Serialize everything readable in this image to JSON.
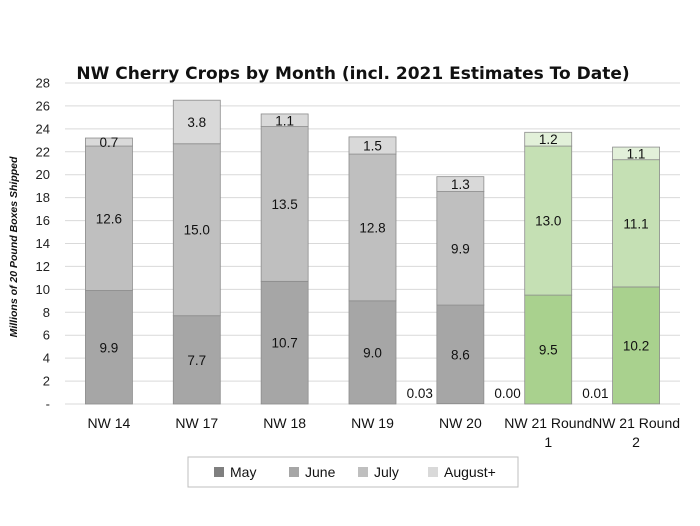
{
  "chart_data": {
    "type": "bar",
    "stacked": true,
    "title": "NW Cherry Crops by Month (incl. 2021 Estimates To Date)",
    "ylabel": "Millions of 20 Pound Boxes Shipped",
    "xlabel": "",
    "ylim": [
      0,
      28
    ],
    "yticks": [
      0,
      2,
      4,
      6,
      8,
      10,
      12,
      14,
      16,
      18,
      20,
      22,
      24,
      26,
      28
    ],
    "ytick_labels": [
      "-",
      "2",
      "4",
      "6",
      "8",
      "10",
      "12",
      "14",
      "16",
      "18",
      "20",
      "22",
      "24",
      "26",
      "28"
    ],
    "grid": true,
    "legend_position": "bottom",
    "categories": [
      "NW 14",
      "NW 17",
      "NW 18",
      "NW 19",
      "NW 20",
      "NW 21 Round 1",
      "NW 21 Round 2"
    ],
    "category_lines": [
      [
        "NW 14"
      ],
      [
        "NW 17"
      ],
      [
        "NW 18"
      ],
      [
        "NW 19"
      ],
      [
        "NW 20"
      ],
      [
        "NW 21 Round",
        "1"
      ],
      [
        "NW 21 Round",
        "2"
      ]
    ],
    "series": [
      {
        "name": "May",
        "values": [
          null,
          null,
          null,
          null,
          0.03,
          0.0,
          0.01
        ],
        "labels": [
          "",
          "",
          "",
          "",
          "0.03",
          "0.00",
          "0.01"
        ]
      },
      {
        "name": "June",
        "values": [
          9.9,
          7.7,
          10.7,
          9.0,
          8.6,
          9.5,
          10.2
        ],
        "labels": [
          "9.9",
          "7.7",
          "10.7",
          "9.0",
          "8.6",
          "9.5",
          "10.2"
        ]
      },
      {
        "name": "July",
        "values": [
          12.6,
          15.0,
          13.5,
          12.8,
          9.9,
          13.0,
          11.1
        ],
        "labels": [
          "12.6",
          "15.0",
          "13.5",
          "12.8",
          "9.9",
          "13.0",
          "11.1"
        ]
      },
      {
        "name": "August+",
        "values": [
          0.7,
          3.8,
          1.1,
          1.5,
          1.3,
          1.2,
          1.1
        ],
        "labels": [
          "0.7",
          "3.8",
          "1.1",
          "1.5",
          "1.3",
          "1.2",
          "1.1"
        ]
      }
    ],
    "colors": {
      "grey": {
        "May": "#7f7f7f",
        "June": "#a6a6a6",
        "July": "#bfbfbf",
        "August+": "#d9d9d9"
      },
      "green": {
        "May": "#70ad47",
        "June": "#a9d18e",
        "July": "#c5e0b4",
        "August+": "#e2f0d9"
      },
      "green_categories": [
        "NW 21 Round 1",
        "NW 21 Round 2"
      ]
    }
  }
}
